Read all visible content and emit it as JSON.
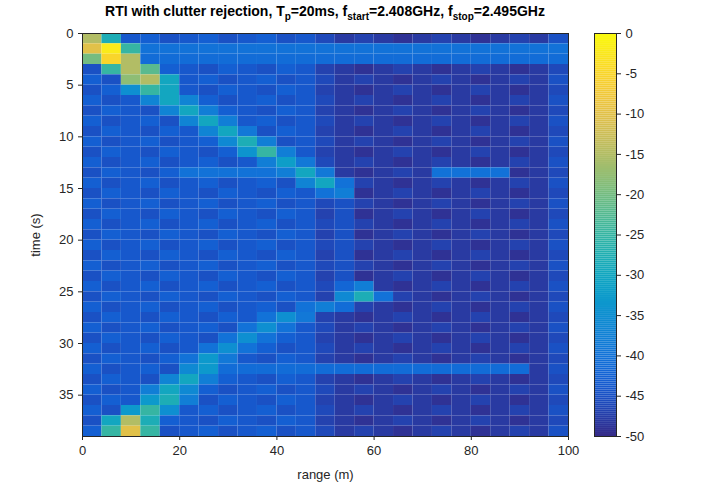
{
  "chart_data": {
    "type": "heatmap",
    "title": [
      {
        "text": "RTI with clutter rejection, T"
      },
      {
        "text": "p",
        "sub": true
      },
      {
        "text": "=20ms, f"
      },
      {
        "text": "start",
        "sub": true
      },
      {
        "text": "=2.408GHz, f"
      },
      {
        "text": "stop",
        "sub": true
      },
      {
        "text": "=2.495GHz"
      }
    ],
    "x_label": "range (m)",
    "y_label": "time (s)",
    "xlim": [
      0,
      100
    ],
    "ylim": [
      0,
      39
    ],
    "xticks": [
      0,
      20,
      40,
      60,
      80,
      100
    ],
    "yticks": [
      0,
      5,
      10,
      15,
      20,
      25,
      30,
      35
    ],
    "x_edges": [
      0,
      4,
      8,
      12,
      16,
      20,
      24,
      28,
      32,
      36,
      40,
      44,
      48,
      52,
      56,
      60,
      64,
      68,
      72,
      76,
      80,
      84,
      88,
      92,
      96,
      100
    ],
    "y_edges": [
      0,
      1,
      2,
      3,
      4,
      5,
      6,
      7,
      8,
      9,
      10,
      11,
      12,
      13,
      14,
      15,
      16,
      17,
      18,
      19,
      20,
      21,
      22,
      23,
      24,
      25,
      26,
      27,
      28,
      29,
      30,
      31,
      32,
      33,
      34,
      35,
      36,
      37,
      38,
      39
    ],
    "cells": [
      [
        -15,
        -28,
        -44,
        -43,
        -45,
        -44,
        -43,
        -45,
        -44,
        -43,
        -45,
        -44,
        -46,
        -48,
        -47,
        -48,
        -49,
        -48,
        -47,
        -48,
        -49,
        -48,
        -47,
        -48,
        -45
      ],
      [
        -10,
        -2,
        -25,
        -40,
        -40,
        -40,
        -40,
        -40,
        -40,
        -40,
        -40,
        -40,
        -40,
        -40,
        -40,
        -40,
        -40,
        -40,
        -40,
        -40,
        -40,
        -40,
        -40,
        -40,
        -40
      ],
      [
        -20,
        -5,
        -15,
        -41,
        -41,
        -41,
        -41,
        -41,
        -41,
        -41,
        -41,
        -41,
        -41,
        -41,
        -41,
        -41,
        -41,
        -41,
        -41,
        -41,
        -41,
        -41,
        -41,
        -41,
        -41
      ],
      [
        -45,
        -25,
        -15,
        -22,
        -43,
        -44,
        -45,
        -43,
        -44,
        -45,
        -43,
        -44,
        -47,
        -48,
        -49,
        -48,
        -47,
        -48,
        -49,
        -48,
        -47,
        -48,
        -49,
        -48,
        -46
      ],
      [
        -43,
        -45,
        -18,
        -15,
        -30,
        -44,
        -43,
        -45,
        -44,
        -43,
        -45,
        -44,
        -46,
        -48,
        -47,
        -48,
        -49,
        -48,
        -47,
        -48,
        -49,
        -48,
        -47,
        -48,
        -45
      ],
      [
        -45,
        -43,
        -35,
        -25,
        -30,
        -44,
        -45,
        -43,
        -44,
        -45,
        -43,
        -44,
        -47,
        -48,
        -49,
        -48,
        -47,
        -48,
        -49,
        -48,
        -47,
        -48,
        -49,
        -48,
        -46
      ],
      [
        -43,
        -45,
        -44,
        -37,
        -30,
        -37,
        -43,
        -45,
        -44,
        -43,
        -45,
        -44,
        -46,
        -48,
        -47,
        -48,
        -49,
        -48,
        -47,
        -48,
        -49,
        -48,
        -47,
        -48,
        -45
      ],
      [
        -45,
        -43,
        -44,
        -45,
        -37,
        -30,
        -38,
        -43,
        -44,
        -45,
        -43,
        -44,
        -47,
        -48,
        -49,
        -48,
        -47,
        -48,
        -49,
        -48,
        -47,
        -48,
        -49,
        -48,
        -46
      ],
      [
        -43,
        -45,
        -44,
        -43,
        -45,
        -37,
        -30,
        -38,
        -44,
        -43,
        -45,
        -44,
        -46,
        -48,
        -47,
        -48,
        -49,
        -48,
        -47,
        -48,
        -49,
        -48,
        -47,
        -48,
        -45
      ],
      [
        -45,
        -43,
        -44,
        -45,
        -43,
        -44,
        -37,
        -30,
        -39,
        -45,
        -43,
        -44,
        -47,
        -48,
        -49,
        -48,
        -47,
        -48,
        -49,
        -48,
        -47,
        -48,
        -49,
        -48,
        -46
      ],
      [
        -43,
        -45,
        -44,
        -43,
        -45,
        -44,
        -43,
        -36,
        -28,
        -38,
        -45,
        -44,
        -46,
        -48,
        -47,
        -48,
        -49,
        -48,
        -47,
        -48,
        -49,
        -48,
        -47,
        -48,
        -45
      ],
      [
        -45,
        -43,
        -44,
        -45,
        -43,
        -44,
        -45,
        -43,
        -34,
        -25,
        -38,
        -44,
        -47,
        -48,
        -49,
        -48,
        -47,
        -48,
        -49,
        -48,
        -47,
        -48,
        -49,
        -48,
        -46
      ],
      [
        -43,
        -45,
        -44,
        -43,
        -45,
        -44,
        -43,
        -45,
        -44,
        -38,
        -32,
        -39,
        -46,
        -48,
        -47,
        -48,
        -49,
        -48,
        -47,
        -48,
        -49,
        -48,
        -47,
        -48,
        -45
      ],
      [
        -45,
        -43,
        -44,
        -45,
        -43,
        -40,
        -40,
        -40,
        -40,
        -40,
        -38,
        -30,
        -39,
        -48,
        -49,
        -48,
        -47,
        -48,
        -40,
        -40,
        -40,
        -40,
        -49,
        -48,
        -46
      ],
      [
        -43,
        -45,
        -44,
        -43,
        -45,
        -44,
        -43,
        -45,
        -44,
        -43,
        -45,
        -37,
        -30,
        -40,
        -47,
        -48,
        -49,
        -48,
        -47,
        -48,
        -49,
        -48,
        -47,
        -48,
        -45
      ],
      [
        -45,
        -43,
        -44,
        -45,
        -43,
        -44,
        -45,
        -43,
        -44,
        -45,
        -43,
        -44,
        -40,
        -38,
        -49,
        -48,
        -47,
        -48,
        -49,
        -48,
        -47,
        -48,
        -49,
        -48,
        -46
      ],
      [
        -43,
        -45,
        -44,
        -43,
        -45,
        -44,
        -43,
        -45,
        -44,
        -43,
        -45,
        -44,
        -46,
        -45,
        -47,
        -48,
        -49,
        -48,
        -47,
        -48,
        -49,
        -48,
        -47,
        -48,
        -45
      ],
      [
        -45,
        -43,
        -44,
        -45,
        -43,
        -44,
        -45,
        -43,
        -44,
        -45,
        -43,
        -44,
        -47,
        -45,
        -49,
        -48,
        -47,
        -48,
        -49,
        -48,
        -47,
        -48,
        -49,
        -48,
        -46
      ],
      [
        -43,
        -45,
        -44,
        -43,
        -45,
        -44,
        -43,
        -45,
        -44,
        -43,
        -45,
        -44,
        -46,
        -45,
        -47,
        -48,
        -49,
        -48,
        -47,
        -48,
        -49,
        -48,
        -47,
        -48,
        -45
      ],
      [
        -45,
        -43,
        -44,
        -45,
        -43,
        -44,
        -45,
        -43,
        -44,
        -45,
        -43,
        -44,
        -47,
        -45,
        -49,
        -48,
        -47,
        -48,
        -49,
        -48,
        -47,
        -48,
        -49,
        -48,
        -46
      ],
      [
        -43,
        -45,
        -44,
        -43,
        -45,
        -44,
        -43,
        -45,
        -44,
        -43,
        -45,
        -44,
        -46,
        -45,
        -47,
        -48,
        -49,
        -48,
        -47,
        -48,
        -49,
        -48,
        -47,
        -48,
        -45
      ],
      [
        -45,
        -43,
        -44,
        -45,
        -43,
        -44,
        -45,
        -43,
        -44,
        -45,
        -43,
        -44,
        -47,
        -45,
        -49,
        -48,
        -47,
        -48,
        -49,
        -48,
        -47,
        -48,
        -49,
        -48,
        -46
      ],
      [
        -43,
        -45,
        -44,
        -43,
        -45,
        -44,
        -43,
        -45,
        -44,
        -43,
        -45,
        -44,
        -46,
        -45,
        -47,
        -48,
        -49,
        -48,
        -47,
        -48,
        -49,
        -48,
        -47,
        -48,
        -45
      ],
      [
        -45,
        -43,
        -44,
        -45,
        -43,
        -44,
        -45,
        -43,
        -44,
        -45,
        -43,
        -44,
        -47,
        -45,
        -49,
        -48,
        -47,
        -48,
        -49,
        -48,
        -47,
        -48,
        -49,
        -48,
        -46
      ],
      [
        -43,
        -45,
        -44,
        -43,
        -45,
        -44,
        -43,
        -45,
        -44,
        -43,
        -45,
        -44,
        -46,
        -42,
        -38,
        -48,
        -49,
        -48,
        -47,
        -48,
        -49,
        -48,
        -47,
        -48,
        -45
      ],
      [
        -45,
        -43,
        -44,
        -45,
        -43,
        -44,
        -45,
        -43,
        -44,
        -45,
        -43,
        -44,
        -47,
        -36,
        -28,
        -40,
        -47,
        -48,
        -49,
        -48,
        -47,
        -48,
        -49,
        -48,
        -46
      ],
      [
        -43,
        -45,
        -44,
        -43,
        -45,
        -44,
        -43,
        -45,
        -44,
        -43,
        -45,
        -40,
        -38,
        -41,
        -47,
        -48,
        -49,
        -48,
        -47,
        -48,
        -49,
        -48,
        -47,
        -48,
        -45
      ],
      [
        -45,
        -43,
        -44,
        -45,
        -43,
        -44,
        -45,
        -43,
        -44,
        -40,
        -35,
        -39,
        -47,
        -48,
        -49,
        -48,
        -47,
        -48,
        -49,
        -48,
        -47,
        -48,
        -49,
        -48,
        -46
      ],
      [
        -43,
        -45,
        -44,
        -43,
        -45,
        -44,
        -43,
        -45,
        -40,
        -35,
        -40,
        -44,
        -46,
        -48,
        -47,
        -48,
        -49,
        -48,
        -47,
        -48,
        -49,
        -48,
        -47,
        -48,
        -45
      ],
      [
        -45,
        -43,
        -44,
        -45,
        -43,
        -44,
        -45,
        -40,
        -35,
        -40,
        -43,
        -44,
        -47,
        -48,
        -49,
        -48,
        -47,
        -48,
        -49,
        -48,
        -47,
        -48,
        -49,
        -48,
        -46
      ],
      [
        -43,
        -45,
        -44,
        -43,
        -45,
        -44,
        -40,
        -35,
        -40,
        -43,
        -45,
        -44,
        -46,
        -48,
        -47,
        -48,
        -49,
        -48,
        -47,
        -48,
        -49,
        -48,
        -47,
        -48,
        -45
      ],
      [
        -45,
        -43,
        -44,
        -45,
        -43,
        -40,
        -33,
        -39,
        -44,
        -45,
        -43,
        -44,
        -47,
        -48,
        -49,
        -48,
        -47,
        -48,
        -49,
        -48,
        -47,
        -48,
        -49,
        -48,
        -46
      ],
      [
        -43,
        -45,
        -44,
        -43,
        -45,
        -36,
        -33,
        -41,
        -41,
        -41,
        -41,
        -41,
        -41,
        -41,
        -41,
        -41,
        -41,
        -41,
        -41,
        -41,
        -41,
        -41,
        -41,
        -48,
        -45
      ],
      [
        -45,
        -43,
        -44,
        -45,
        -37,
        -30,
        -38,
        -43,
        -44,
        -45,
        -43,
        -44,
        -47,
        -48,
        -49,
        -48,
        -47,
        -48,
        -49,
        -48,
        -47,
        -48,
        -49,
        -48,
        -46
      ],
      [
        -43,
        -45,
        -44,
        -38,
        -30,
        -36,
        -43,
        -45,
        -44,
        -43,
        -45,
        -44,
        -46,
        -48,
        -47,
        -48,
        -49,
        -48,
        -47,
        -48,
        -49,
        -48,
        -47,
        -48,
        -45
      ],
      [
        -45,
        -43,
        -44,
        -33,
        -28,
        -38,
        -45,
        -43,
        -44,
        -45,
        -43,
        -44,
        -47,
        -48,
        -49,
        -48,
        -47,
        -48,
        -49,
        -48,
        -47,
        -48,
        -49,
        -48,
        -46
      ],
      [
        -43,
        -45,
        -33,
        -25,
        -35,
        -44,
        -43,
        -45,
        -44,
        -43,
        -45,
        -44,
        -46,
        -48,
        -47,
        -48,
        -49,
        -48,
        -47,
        -48,
        -49,
        -48,
        -47,
        -48,
        -45
      ],
      [
        -45,
        -30,
        -15,
        -28,
        -43,
        -44,
        -45,
        -43,
        -44,
        -45,
        -43,
        -44,
        -47,
        -48,
        -49,
        -48,
        -47,
        -48,
        -49,
        -48,
        -47,
        -48,
        -49,
        -48,
        -46
      ],
      [
        -43,
        -25,
        -10,
        -25,
        -45,
        -44,
        -43,
        -45,
        -44,
        -43,
        -45,
        -44,
        -46,
        -48,
        -47,
        -48,
        -49,
        -48,
        -47,
        -48,
        -49,
        -48,
        -47,
        -48,
        -45
      ]
    ],
    "colorbar": {
      "range": [
        -50,
        0
      ],
      "ticks": [
        0,
        -5,
        -10,
        -15,
        -20,
        -25,
        -30,
        -35,
        -40,
        -45,
        -50
      ]
    }
  }
}
